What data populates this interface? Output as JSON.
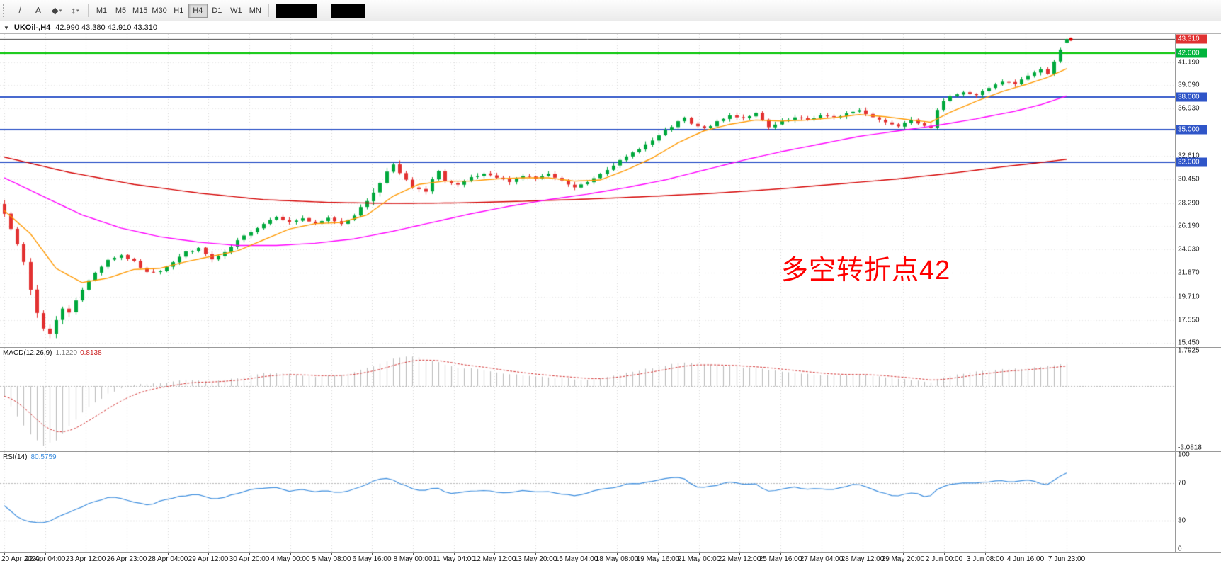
{
  "window": {
    "symbol_period": "UKOil-,H4",
    "ohlc": "42.990 43.380 42.910 43.310",
    "collapse_icon": "▼"
  },
  "toolbar": {
    "tools": [
      {
        "name": "trendline-icon",
        "glyph": "/"
      },
      {
        "name": "text-tool-icon",
        "glyph": "A"
      },
      {
        "name": "shapes-dropdown-icon",
        "glyph": "◆",
        "caret": "▾"
      },
      {
        "name": "arrows-dropdown-icon",
        "glyph": "↕",
        "caret": "▾"
      }
    ],
    "timeframes": [
      "M1",
      "M5",
      "M15",
      "M30",
      "H1",
      "H4",
      "D1",
      "W1",
      "MN"
    ],
    "active_timeframe": "H4"
  },
  "price_axis": {
    "ticks": [
      "41.190",
      "39.090",
      "36.930",
      "32.610",
      "30.450",
      "28.290",
      "26.190",
      "24.030",
      "21.870",
      "19.710",
      "17.550",
      "15.450"
    ],
    "tags": [
      {
        "value": "43.310",
        "price": 43.31,
        "color": "#E03232"
      },
      {
        "value": "42.000",
        "price": 42.0,
        "color": "#00B43C"
      },
      {
        "value": "38.000",
        "price": 38.0,
        "color": "#2F55C8"
      },
      {
        "value": "35.000",
        "price": 35.0,
        "color": "#2F55C8"
      },
      {
        "value": "32.000",
        "price": 32.0,
        "color": "#2F55C8"
      }
    ]
  },
  "annotation": {
    "text": "多空转折点42",
    "color": "#FF0000"
  },
  "macd_panel": {
    "label": "MACD(12,26,9)",
    "main_value": "1.1220",
    "signal_value": "0.8138",
    "axis_max": "1.7925",
    "axis_min": "-3.0818"
  },
  "rsi_panel": {
    "label": "RSI(14)",
    "value": "80.5759",
    "axis_ticks": [
      "100",
      "70",
      "30",
      "0"
    ]
  },
  "time_axis": {
    "labels": [
      "20 Apr 2020",
      "22 Apr 04:00",
      "23 Apr 12:00",
      "26 Apr 23:00",
      "28 Apr 04:00",
      "29 Apr 12:00",
      "30 Apr 20:00",
      "4 May 00:00",
      "5 May 08:00",
      "6 May 16:00",
      "8 May 00:00",
      "11 May 04:00",
      "12 May 12:00",
      "13 May 20:00",
      "15 May 04:00",
      "18 May 08:00",
      "19 May 16:00",
      "21 May 00:00",
      "22 May 12:00",
      "25 May 16:00",
      "27 May 04:00",
      "28 May 12:00",
      "29 May 20:00",
      "2 Jun 00:00",
      "3 Jun 08:00",
      "4 Jun 16:00",
      "7 Jun 23:00"
    ]
  },
  "chart_data": {
    "type": "candlestick",
    "symbol": "UKOil-",
    "timeframe": "H4",
    "candle_count": 165,
    "price_range": {
      "min": 15.08,
      "max": 43.78
    },
    "levels": [
      {
        "price": 43.31,
        "color": "#3C3C3C",
        "width": 1
      },
      {
        "price": 42.0,
        "color": "#00C400",
        "width": 2
      },
      {
        "price": 38.0,
        "color": "#2F55C8",
        "width": 2
      },
      {
        "price": 35.0,
        "color": "#2F55C8",
        "width": 2
      },
      {
        "price": 32.0,
        "color": "#2F55C8",
        "width": 2
      }
    ],
    "close_anchors": [
      [
        0,
        27.3
      ],
      [
        1,
        26.0
      ],
      [
        2,
        24.6
      ],
      [
        3,
        22.8
      ],
      [
        4,
        20.3
      ],
      [
        5,
        18.2
      ],
      [
        6,
        16.8
      ],
      [
        7,
        16.3
      ],
      [
        8,
        17.6
      ],
      [
        9,
        18.6
      ],
      [
        10,
        18.2
      ],
      [
        11,
        19.4
      ],
      [
        12,
        20.4
      ],
      [
        14,
        21.9
      ],
      [
        16,
        23.1
      ],
      [
        18,
        23.5
      ],
      [
        20,
        22.9
      ],
      [
        22,
        21.9
      ],
      [
        24,
        22.1
      ],
      [
        26,
        22.9
      ],
      [
        28,
        23.8
      ],
      [
        30,
        24.1
      ],
      [
        32,
        23.1
      ],
      [
        34,
        23.7
      ],
      [
        36,
        24.8
      ],
      [
        38,
        25.7
      ],
      [
        40,
        26.4
      ],
      [
        42,
        27.1
      ],
      [
        44,
        26.5
      ],
      [
        46,
        26.9
      ],
      [
        48,
        26.3
      ],
      [
        50,
        26.9
      ],
      [
        52,
        26.4
      ],
      [
        54,
        27.2
      ],
      [
        56,
        28.5
      ],
      [
        58,
        30.1
      ],
      [
        59,
        31.2
      ],
      [
        60,
        31.9
      ],
      [
        61,
        31.0
      ],
      [
        63,
        29.7
      ],
      [
        65,
        29.3
      ],
      [
        66,
        30.4
      ],
      [
        67,
        31.3
      ],
      [
        68,
        30.3
      ],
      [
        70,
        29.9
      ],
      [
        72,
        30.6
      ],
      [
        74,
        30.9
      ],
      [
        76,
        30.6
      ],
      [
        78,
        30.3
      ],
      [
        80,
        30.8
      ],
      [
        82,
        30.5
      ],
      [
        84,
        30.9
      ],
      [
        86,
        30.3
      ],
      [
        88,
        29.7
      ],
      [
        90,
        30.2
      ],
      [
        92,
        31.0
      ],
      [
        94,
        31.8
      ],
      [
        96,
        32.5
      ],
      [
        98,
        33.3
      ],
      [
        100,
        34.0
      ],
      [
        102,
        34.9
      ],
      [
        104,
        35.7
      ],
      [
        105,
        36.1
      ],
      [
        106,
        35.5
      ],
      [
        108,
        35.1
      ],
      [
        110,
        35.7
      ],
      [
        112,
        36.3
      ],
      [
        114,
        36.1
      ],
      [
        116,
        36.5
      ],
      [
        118,
        35.2
      ],
      [
        120,
        35.7
      ],
      [
        122,
        36.1
      ],
      [
        124,
        35.9
      ],
      [
        126,
        36.3
      ],
      [
        128,
        36.1
      ],
      [
        130,
        36.5
      ],
      [
        132,
        36.8
      ],
      [
        134,
        36.2
      ],
      [
        136,
        35.7
      ],
      [
        138,
        35.4
      ],
      [
        140,
        36.0
      ],
      [
        142,
        35.3
      ],
      [
        143,
        35.1
      ],
      [
        144,
        36.9
      ],
      [
        145,
        37.7
      ],
      [
        146,
        38.1
      ],
      [
        148,
        38.4
      ],
      [
        150,
        38.2
      ],
      [
        152,
        38.8
      ],
      [
        154,
        39.4
      ],
      [
        156,
        39.2
      ],
      [
        158,
        40.0
      ],
      [
        160,
        40.5
      ],
      [
        161,
        40.2
      ],
      [
        162,
        41.3
      ],
      [
        163,
        42.3
      ],
      [
        164,
        43.31
      ]
    ],
    "crash_low": {
      "index": 7,
      "low": 15.9
    },
    "last_candle": {
      "open": 42.99,
      "high": 43.38,
      "low": 42.91,
      "close": 43.31
    },
    "ma_fast_anchors": [
      [
        0,
        27.6
      ],
      [
        4,
        25.5
      ],
      [
        8,
        22.3
      ],
      [
        12,
        21.0
      ],
      [
        16,
        21.4
      ],
      [
        20,
        22.2
      ],
      [
        24,
        22.3
      ],
      [
        28,
        22.9
      ],
      [
        32,
        23.4
      ],
      [
        36,
        23.9
      ],
      [
        40,
        24.9
      ],
      [
        44,
        25.9
      ],
      [
        48,
        26.4
      ],
      [
        52,
        26.5
      ],
      [
        56,
        27.2
      ],
      [
        60,
        28.9
      ],
      [
        64,
        30.0
      ],
      [
        68,
        30.3
      ],
      [
        72,
        30.3
      ],
      [
        76,
        30.5
      ],
      [
        80,
        30.6
      ],
      [
        84,
        30.6
      ],
      [
        88,
        30.3
      ],
      [
        92,
        30.4
      ],
      [
        96,
        31.3
      ],
      [
        100,
        32.4
      ],
      [
        104,
        33.8
      ],
      [
        108,
        34.9
      ],
      [
        112,
        35.5
      ],
      [
        116,
        35.9
      ],
      [
        120,
        35.8
      ],
      [
        124,
        35.9
      ],
      [
        128,
        36.1
      ],
      [
        132,
        36.4
      ],
      [
        136,
        36.2
      ],
      [
        140,
        35.9
      ],
      [
        143,
        35.7
      ],
      [
        146,
        36.6
      ],
      [
        150,
        37.6
      ],
      [
        154,
        38.5
      ],
      [
        158,
        39.2
      ],
      [
        161,
        39.8
      ],
      [
        164,
        40.6
      ]
    ],
    "ma_mid_anchors": [
      [
        0,
        30.6
      ],
      [
        6,
        28.9
      ],
      [
        12,
        27.2
      ],
      [
        18,
        26.0
      ],
      [
        24,
        25.2
      ],
      [
        30,
        24.7
      ],
      [
        36,
        24.4
      ],
      [
        42,
        24.4
      ],
      [
        48,
        24.6
      ],
      [
        54,
        25.0
      ],
      [
        60,
        25.7
      ],
      [
        66,
        26.5
      ],
      [
        72,
        27.3
      ],
      [
        78,
        28.0
      ],
      [
        84,
        28.6
      ],
      [
        90,
        29.1
      ],
      [
        96,
        29.7
      ],
      [
        102,
        30.4
      ],
      [
        108,
        31.3
      ],
      [
        114,
        32.2
      ],
      [
        120,
        33.0
      ],
      [
        126,
        33.7
      ],
      [
        132,
        34.4
      ],
      [
        138,
        34.9
      ],
      [
        144,
        35.4
      ],
      [
        150,
        36.0
      ],
      [
        156,
        36.7
      ],
      [
        160,
        37.3
      ],
      [
        164,
        38.1
      ]
    ],
    "ma_slow_anchors": [
      [
        0,
        32.5
      ],
      [
        10,
        31.1
      ],
      [
        20,
        30.0
      ],
      [
        30,
        29.2
      ],
      [
        40,
        28.6
      ],
      [
        50,
        28.35
      ],
      [
        60,
        28.25
      ],
      [
        70,
        28.3
      ],
      [
        80,
        28.45
      ],
      [
        90,
        28.65
      ],
      [
        100,
        28.9
      ],
      [
        110,
        29.2
      ],
      [
        120,
        29.6
      ],
      [
        130,
        30.1
      ],
      [
        138,
        30.5
      ],
      [
        146,
        31.0
      ],
      [
        154,
        31.6
      ],
      [
        160,
        32.0
      ],
      [
        164,
        32.3
      ]
    ],
    "macd_range": {
      "min": -3.25,
      "max": 1.92
    },
    "macd_anchors": [
      [
        0,
        -0.5
      ],
      [
        2,
        -1.5
      ],
      [
        4,
        -2.4
      ],
      [
        6,
        -3.0
      ],
      [
        8,
        -2.7
      ],
      [
        10,
        -2.0
      ],
      [
        12,
        -1.3
      ],
      [
        14,
        -0.8
      ],
      [
        16,
        -0.4
      ],
      [
        18,
        -0.1
      ],
      [
        20,
        0.1
      ],
      [
        24,
        0.15
      ],
      [
        28,
        0.3
      ],
      [
        32,
        0.25
      ],
      [
        36,
        0.4
      ],
      [
        40,
        0.65
      ],
      [
        44,
        0.6
      ],
      [
        48,
        0.5
      ],
      [
        52,
        0.55
      ],
      [
        56,
        0.9
      ],
      [
        60,
        1.4
      ],
      [
        63,
        1.5
      ],
      [
        66,
        1.25
      ],
      [
        70,
        0.95
      ],
      [
        74,
        0.8
      ],
      [
        78,
        0.6
      ],
      [
        82,
        0.5
      ],
      [
        86,
        0.4
      ],
      [
        90,
        0.3
      ],
      [
        94,
        0.5
      ],
      [
        98,
        0.8
      ],
      [
        102,
        1.05
      ],
      [
        105,
        1.2
      ],
      [
        108,
        1.1
      ],
      [
        112,
        1.0
      ],
      [
        116,
        0.9
      ],
      [
        120,
        0.72
      ],
      [
        124,
        0.6
      ],
      [
        128,
        0.55
      ],
      [
        132,
        0.58
      ],
      [
        136,
        0.45
      ],
      [
        140,
        0.32
      ],
      [
        143,
        0.22
      ],
      [
        146,
        0.5
      ],
      [
        150,
        0.75
      ],
      [
        154,
        0.85
      ],
      [
        158,
        0.9
      ],
      [
        161,
        1.0
      ],
      [
        164,
        1.12
      ]
    ],
    "rsi_range": {
      "min": -3,
      "max": 103
    },
    "rsi_levels": [
      70,
      30
    ],
    "rsi_anchors": [
      [
        0,
        46
      ],
      [
        2,
        34
      ],
      [
        4,
        28
      ],
      [
        6,
        26
      ],
      [
        8,
        33
      ],
      [
        10,
        38
      ],
      [
        12,
        45
      ],
      [
        14,
        50
      ],
      [
        16,
        55
      ],
      [
        18,
        53
      ],
      [
        20,
        49
      ],
      [
        22,
        46
      ],
      [
        24,
        50
      ],
      [
        26,
        54
      ],
      [
        28,
        57
      ],
      [
        30,
        58
      ],
      [
        32,
        52
      ],
      [
        34,
        55
      ],
      [
        36,
        59
      ],
      [
        38,
        62
      ],
      [
        40,
        64
      ],
      [
        42,
        66
      ],
      [
        44,
        61
      ],
      [
        46,
        63
      ],
      [
        48,
        59
      ],
      [
        50,
        62
      ],
      [
        52,
        60
      ],
      [
        54,
        64
      ],
      [
        56,
        69
      ],
      [
        58,
        74
      ],
      [
        60,
        76
      ],
      [
        61,
        70
      ],
      [
        63,
        63
      ],
      [
        65,
        60
      ],
      [
        66,
        64
      ],
      [
        67,
        67
      ],
      [
        68,
        61
      ],
      [
        70,
        58
      ],
      [
        72,
        62
      ],
      [
        74,
        64
      ],
      [
        76,
        62
      ],
      [
        78,
        60
      ],
      [
        80,
        63
      ],
      [
        82,
        61
      ],
      [
        84,
        63
      ],
      [
        86,
        59
      ],
      [
        88,
        55
      ],
      [
        90,
        59
      ],
      [
        92,
        63
      ],
      [
        94,
        66
      ],
      [
        96,
        68
      ],
      [
        98,
        70
      ],
      [
        100,
        72
      ],
      [
        102,
        74
      ],
      [
        104,
        76
      ],
      [
        105,
        77
      ],
      [
        106,
        68
      ],
      [
        108,
        64
      ],
      [
        110,
        67
      ],
      [
        112,
        70
      ],
      [
        114,
        68
      ],
      [
        116,
        71
      ],
      [
        118,
        59
      ],
      [
        120,
        63
      ],
      [
        122,
        66
      ],
      [
        124,
        63
      ],
      [
        126,
        66
      ],
      [
        128,
        64
      ],
      [
        130,
        67
      ],
      [
        132,
        69
      ],
      [
        134,
        63
      ],
      [
        136,
        59
      ],
      [
        138,
        56
      ],
      [
        140,
        61
      ],
      [
        142,
        55
      ],
      [
        143,
        53
      ],
      [
        144,
        65
      ],
      [
        146,
        70
      ],
      [
        148,
        72
      ],
      [
        150,
        69
      ],
      [
        152,
        72
      ],
      [
        154,
        74
      ],
      [
        156,
        70
      ],
      [
        158,
        74
      ],
      [
        160,
        71
      ],
      [
        161,
        65
      ],
      [
        162,
        72
      ],
      [
        163,
        77
      ],
      [
        164,
        80.6
      ]
    ],
    "colors": {
      "bull": "#00A83C",
      "bear": "#E23131",
      "ma_fast": "#FF9900",
      "ma_mid": "#FF00FF",
      "ma_slow": "#D40000",
      "macd_hist": "#B9B9B9",
      "macd_signal": "#D23333",
      "rsi": "#3E8EDE",
      "grid": "#D6D6D6",
      "last_dot": "#E00000"
    }
  }
}
